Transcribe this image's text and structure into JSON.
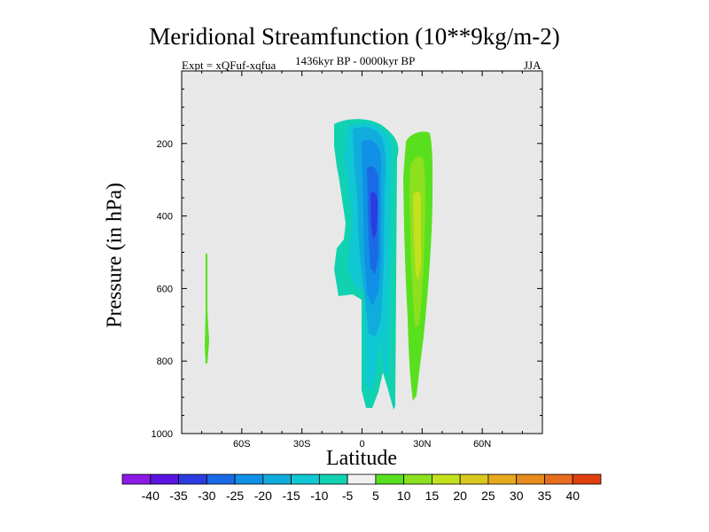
{
  "chart_data": {
    "type": "filled-contour",
    "title": "Meridional Streamfunction (10**9kg/m-2)",
    "experiment": "Expt = xQFuf-xqfua",
    "period": "1436kyr BP - 0000kyr BP",
    "season": "JJA",
    "xlabel": "Latitude",
    "ylabel": "Pressure (in hPa)",
    "x_range": [
      -90,
      90
    ],
    "y_range": [
      0,
      1000
    ],
    "y_inverted": true,
    "x_ticks": [
      {
        "value": -60,
        "label": "60S"
      },
      {
        "value": -30,
        "label": "30S"
      },
      {
        "value": 0,
        "label": "0"
      },
      {
        "value": 30,
        "label": "30N"
      },
      {
        "value": 60,
        "label": "60N"
      }
    ],
    "y_ticks": [
      {
        "value": 200,
        "label": "200"
      },
      {
        "value": 400,
        "label": "400"
      },
      {
        "value": 600,
        "label": "600"
      },
      {
        "value": 800,
        "label": "800"
      },
      {
        "value": 1000,
        "label": "1000"
      }
    ],
    "contour_levels": [
      -40,
      -35,
      -30,
      -25,
      -20,
      -15,
      -10,
      -5,
      5,
      10,
      15,
      20,
      25,
      30,
      35,
      40
    ],
    "colorbar_colors": [
      "#8c1ae6",
      "#5a14e0",
      "#2c3ce0",
      "#1a6ae6",
      "#1090e6",
      "#10acdc",
      "#10c8d2",
      "#10d2b0",
      "#f0f0f0",
      "#58e01e",
      "#8ce01e",
      "#c4e01e",
      "#d8c81e",
      "#e6aa1e",
      "#e68c1e",
      "#e66c1e",
      "#e0400e"
    ],
    "plot_background": "#e8e8e8",
    "features": [
      {
        "name": "southern-cell",
        "sign": "negative",
        "lat_range": [
          -15,
          20
        ],
        "pressure_range": [
          150,
          925
        ],
        "min_value": -35,
        "center": [
          8,
          360
        ]
      },
      {
        "name": "northern-cell",
        "sign": "positive",
        "lat_range": [
          22,
          36
        ],
        "pressure_range": [
          200,
          900
        ],
        "max_value": 15,
        "center": [
          27,
          380
        ]
      },
      {
        "name": "high-latitude-sliver",
        "sign": "positive",
        "lat_range": [
          -77,
          -76
        ],
        "pressure_range": [
          500,
          810
        ],
        "max_value": 5
      }
    ]
  }
}
